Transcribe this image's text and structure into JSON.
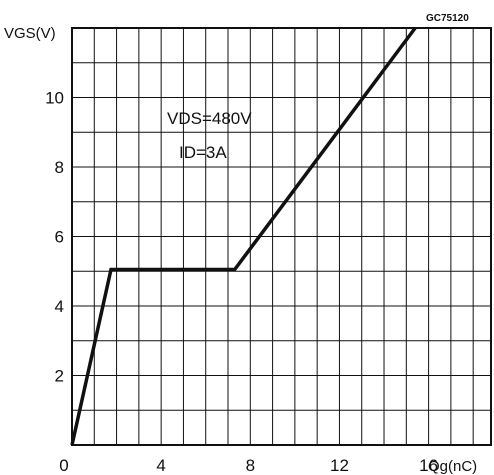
{
  "chart_data": {
    "type": "line",
    "code": "GC75120",
    "ylabel": "VGS(V)",
    "xlabel": "Qg(nC)",
    "xlim": [
      0,
      18.8
    ],
    "ylim": [
      0,
      12
    ],
    "x_ticks": [
      0,
      4,
      8,
      12,
      16
    ],
    "y_ticks": [
      2,
      4,
      6,
      8,
      10
    ],
    "grid": true,
    "annotation": [
      "VDS=480V",
      "ID=3A"
    ],
    "series": [
      {
        "x": [
          0,
          1.75,
          7.3,
          15.4
        ],
        "y": [
          0,
          5.05,
          5.05,
          12
        ]
      }
    ]
  }
}
